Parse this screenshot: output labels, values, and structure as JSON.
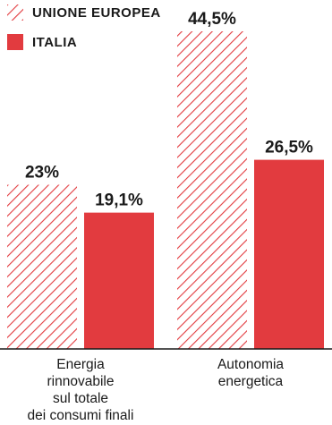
{
  "legend": {
    "eu_label": "UNIONE EUROPEA",
    "italy_label": "ITALIA"
  },
  "colors": {
    "italy": "#e23b3f",
    "eu_hatch": "#e23b3f",
    "text": "#1a1a1a",
    "axis": "#1a1a1a"
  },
  "chart_data": {
    "type": "bar",
    "categories": [
      "Energia rinnovabile sul totale dei consumi finali",
      "Autonomia energetica"
    ],
    "category_lines": [
      [
        "Energia",
        "rinnovabile",
        "sul totale",
        "dei consumi finali"
      ],
      [
        "Autonomia",
        "energetica"
      ]
    ],
    "series": [
      {
        "name": "UNIONE EUROPEA",
        "values": [
          23,
          44.5
        ],
        "labels": [
          "23%",
          "44,5%"
        ],
        "style": "hatched"
      },
      {
        "name": "ITALIA",
        "values": [
          19.1,
          26.5
        ],
        "labels": [
          "19,1%",
          "26,5%"
        ],
        "style": "solid"
      }
    ],
    "unit": "%",
    "ylim": [
      0,
      46
    ],
    "grid": false,
    "legend_position": "top-left"
  }
}
